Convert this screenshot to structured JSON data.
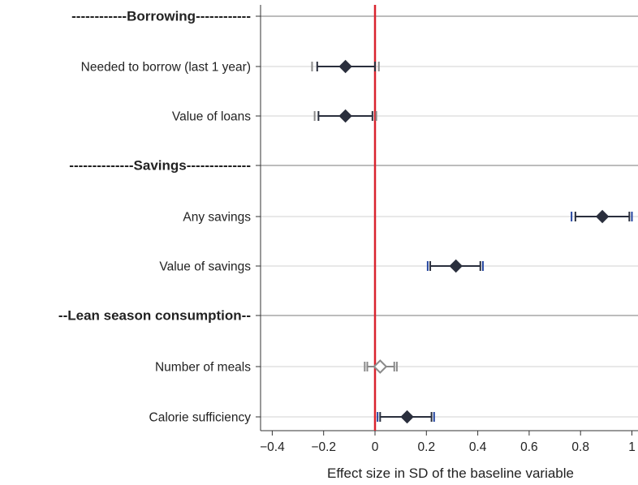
{
  "chart_data": {
    "type": "scatter",
    "title": "",
    "xlabel": "Effect size in SD of the baseline variable",
    "ylabel": "",
    "xlim": [
      -0.45,
      1.02
    ],
    "xticks": [
      -0.4,
      -0.2,
      0,
      0.2,
      0.4,
      0.6,
      0.8,
      1
    ],
    "xtick_labels": [
      "−0.4",
      "−0.2",
      "0",
      "0.2",
      "0.4",
      "0.6",
      "0.8",
      "1"
    ],
    "reference_line": {
      "x": 0,
      "color": "#d9232e"
    },
    "grid": true,
    "legend": "none",
    "rows": [
      {
        "kind": "header",
        "label": "------------Borrowing------------"
      },
      {
        "kind": "item",
        "label": "Needed to borrow (last 1 year)",
        "estimate": -0.115,
        "ci_inner": [
          -0.225,
          0.0
        ],
        "ci_outer": [
          -0.245,
          0.015
        ],
        "significant": true,
        "inner_color": "#2a2f3d",
        "outer_color": "#8a8a8a"
      },
      {
        "kind": "item",
        "label": "Value of loans",
        "estimate": -0.115,
        "ci_inner": [
          -0.22,
          -0.01
        ],
        "ci_outer": [
          -0.235,
          0.005
        ],
        "significant": true,
        "inner_color": "#2a2f3d",
        "outer_color": "#8a8a8a"
      },
      {
        "kind": "header",
        "label": "--------------Savings--------------"
      },
      {
        "kind": "item",
        "label": "Any savings",
        "estimate": 0.885,
        "ci_inner": [
          0.78,
          0.99
        ],
        "ci_outer": [
          0.765,
          1.0
        ],
        "significant": true,
        "inner_color": "#2a2f3d",
        "outer_color": "#2546a0"
      },
      {
        "kind": "item",
        "label": "Value of savings",
        "estimate": 0.315,
        "ci_inner": [
          0.215,
          0.41
        ],
        "ci_outer": [
          0.205,
          0.42
        ],
        "significant": true,
        "inner_color": "#2a2f3d",
        "outer_color": "#2546a0"
      },
      {
        "kind": "header",
        "label": "--Lean season consumption--"
      },
      {
        "kind": "item",
        "label": "Number of meals",
        "estimate": 0.02,
        "ci_inner": [
          -0.03,
          0.075
        ],
        "ci_outer": [
          -0.04,
          0.085
        ],
        "significant": false,
        "inner_color": "#8a8a8a",
        "outer_color": "#8a8a8a"
      },
      {
        "kind": "item",
        "label": "Calorie sufficiency",
        "estimate": 0.125,
        "ci_inner": [
          0.02,
          0.22
        ],
        "ci_outer": [
          0.01,
          0.23
        ],
        "significant": true,
        "inner_color": "#2a2f3d",
        "outer_color": "#2546a0"
      }
    ]
  }
}
